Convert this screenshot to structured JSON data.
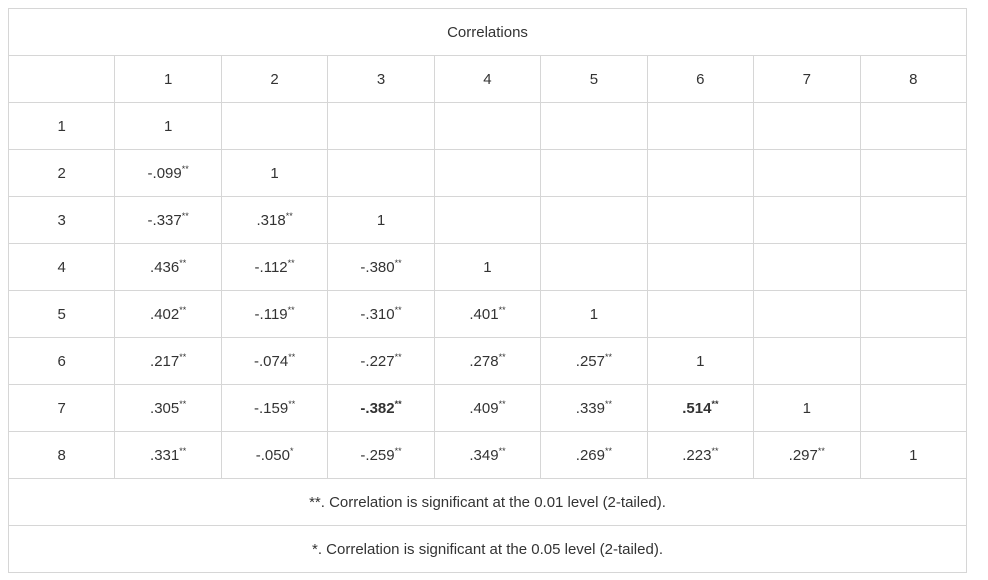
{
  "title": "Correlations",
  "columns": [
    "1",
    "2",
    "3",
    "4",
    "5",
    "6",
    "7",
    "8"
  ],
  "rows": [
    {
      "label": "1",
      "cells": [
        {
          "v": "1"
        },
        {},
        {},
        {},
        {},
        {},
        {},
        {}
      ]
    },
    {
      "label": "2",
      "cells": [
        {
          "v": "-.099",
          "sig": "**"
        },
        {
          "v": "1"
        },
        {},
        {},
        {},
        {},
        {},
        {}
      ]
    },
    {
      "label": "3",
      "cells": [
        {
          "v": "-.337",
          "sig": "**"
        },
        {
          "v": ".318",
          "sig": "**"
        },
        {
          "v": "1"
        },
        {},
        {},
        {},
        {},
        {}
      ]
    },
    {
      "label": "4",
      "cells": [
        {
          "v": ".436",
          "sig": "**"
        },
        {
          "v": "-.112",
          "sig": "**"
        },
        {
          "v": "-.380",
          "sig": "**"
        },
        {
          "v": "1"
        },
        {},
        {},
        {},
        {}
      ]
    },
    {
      "label": "5",
      "cells": [
        {
          "v": ".402",
          "sig": "**"
        },
        {
          "v": "-.119",
          "sig": "**"
        },
        {
          "v": "-.310",
          "sig": "**"
        },
        {
          "v": ".401",
          "sig": "**"
        },
        {
          "v": "1"
        },
        {},
        {},
        {}
      ]
    },
    {
      "label": "6",
      "cells": [
        {
          "v": ".217",
          "sig": "**"
        },
        {
          "v": "-.074",
          "sig": "**"
        },
        {
          "v": "-.227",
          "sig": "**"
        },
        {
          "v": ".278",
          "sig": "**"
        },
        {
          "v": ".257",
          "sig": "**"
        },
        {
          "v": "1"
        },
        {},
        {}
      ]
    },
    {
      "label": "7",
      "cells": [
        {
          "v": ".305",
          "sig": "**"
        },
        {
          "v": "-.159",
          "sig": "**"
        },
        {
          "v": "-.382",
          "sig": "**",
          "bold": true
        },
        {
          "v": ".409",
          "sig": "**"
        },
        {
          "v": ".339",
          "sig": "**"
        },
        {
          "v": ".514",
          "sig": "**",
          "bold": true
        },
        {
          "v": "1"
        },
        {}
      ]
    },
    {
      "label": "8",
      "cells": [
        {
          "v": ".331",
          "sig": "**"
        },
        {
          "v": "-.050",
          "sig": "*"
        },
        {
          "v": "-.259",
          "sig": "**"
        },
        {
          "v": ".349",
          "sig": "**"
        },
        {
          "v": ".269",
          "sig": "**"
        },
        {
          "v": ".223",
          "sig": "**"
        },
        {
          "v": ".297",
          "sig": "**"
        },
        {
          "v": "1"
        }
      ]
    }
  ],
  "footnotes": [
    "**. Correlation is significant at the 0.01 level (2-tailed).",
    "*. Correlation is significant at the 0.05 level (2-tailed)."
  ]
}
